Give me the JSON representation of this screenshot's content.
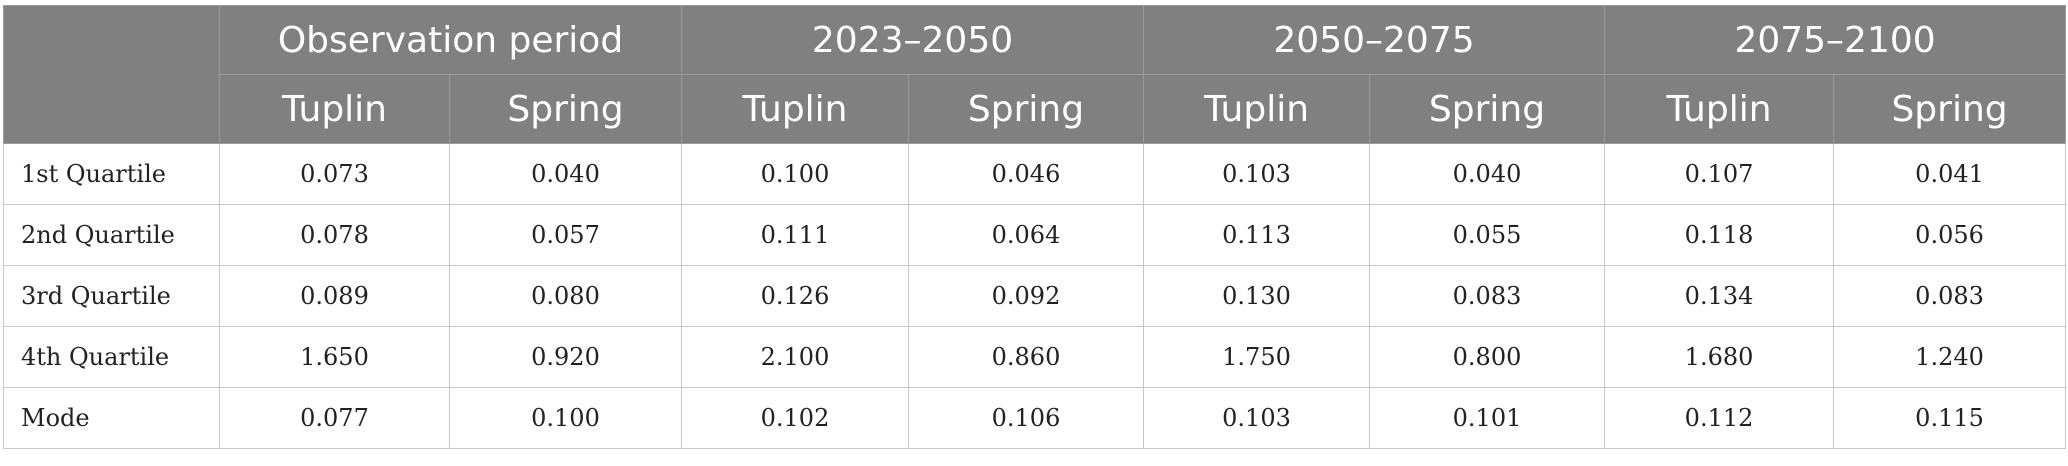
{
  "header": {
    "groups": [
      "Observation period",
      "2023–2050",
      "2050–2075",
      "2075–2100"
    ],
    "subcols": [
      "Tuplin",
      "Spring",
      "Tuplin",
      "Spring",
      "Tuplin",
      "Spring",
      "Tuplin",
      "Spring"
    ]
  },
  "rows": [
    {
      "label": "1st Quartile",
      "values": [
        "0.073",
        "0.040",
        "0.100",
        "0.046",
        "0.103",
        "0.040",
        "0.107",
        "0.041"
      ]
    },
    {
      "label": "2nd Quartile",
      "values": [
        "0.078",
        "0.057",
        "0.111",
        "0.064",
        "0.113",
        "0.055",
        "0.118",
        "0.056"
      ]
    },
    {
      "label": "3rd Quartile",
      "values": [
        "0.089",
        "0.080",
        "0.126",
        "0.092",
        "0.130",
        "0.083",
        "0.134",
        "0.083"
      ]
    },
    {
      "label": "4th Quartile",
      "values": [
        "1.650",
        "0.920",
        "2.100",
        "0.860",
        "1.750",
        "0.800",
        "1.680",
        "1.240"
      ]
    },
    {
      "label": "Mode",
      "values": [
        "0.077",
        "0.100",
        "0.102",
        "0.106",
        "0.103",
        "0.101",
        "0.112",
        "0.115"
      ]
    }
  ]
}
